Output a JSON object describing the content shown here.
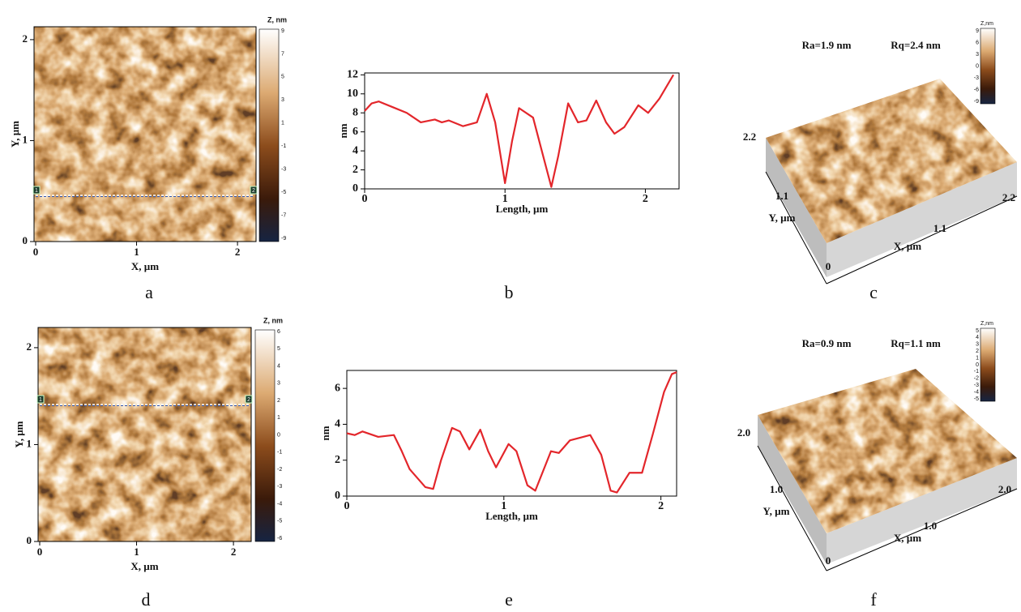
{
  "maps": [
    {
      "panel_label": "a",
      "x_axis_title": "X, µm",
      "y_axis_title": "Y, µm",
      "x_ticks": [
        "0",
        "1",
        "2"
      ],
      "y_ticks": [
        "0",
        "1",
        "2"
      ],
      "colorbar_title": "Z, nm",
      "colorbar_ticks": [
        "9",
        "7",
        "5",
        "3",
        "1",
        "-1",
        "-3",
        "-5",
        "-7",
        "-9"
      ],
      "marker_labels": [
        "1",
        "2"
      ]
    },
    {
      "panel_label": "d",
      "x_axis_title": "X, µm",
      "y_axis_title": "Y, µm",
      "x_ticks": [
        "0",
        "1",
        "2"
      ],
      "y_ticks": [
        "0",
        "1",
        "2"
      ],
      "colorbar_title": "Z, nm",
      "colorbar_ticks": [
        "6",
        "5",
        "4",
        "3",
        "2",
        "1",
        "0",
        "-1",
        "-2",
        "-3",
        "-4",
        "-5",
        "-6"
      ],
      "marker_labels": [
        "1",
        "2"
      ]
    }
  ],
  "chart_data": [
    {
      "type": "line",
      "panel_label": "b",
      "x_label": "Length, µm",
      "y_label": "nm",
      "x": [
        0,
        0.05,
        0.1,
        0.2,
        0.3,
        0.4,
        0.5,
        0.55,
        0.6,
        0.7,
        0.8,
        0.87,
        0.93,
        1.0,
        1.05,
        1.1,
        1.2,
        1.28,
        1.33,
        1.38,
        1.45,
        1.52,
        1.58,
        1.65,
        1.72,
        1.78,
        1.85,
        1.95,
        2.02,
        2.1,
        2.2
      ],
      "series": [
        {
          "color": "#e3262b",
          "values": [
            8.2,
            9.0,
            9.2,
            8.6,
            8.0,
            7.0,
            7.3,
            7.0,
            7.2,
            6.6,
            7.0,
            10.0,
            7.0,
            0.6,
            5.0,
            8.5,
            7.5,
            3.0,
            0.2,
            3.5,
            9.0,
            7.0,
            7.2,
            9.3,
            7.0,
            5.8,
            6.5,
            8.8,
            8.0,
            9.5,
            12.0
          ]
        }
      ],
      "xlim": [
        0,
        2.24
      ],
      "ylim": [
        0,
        12.2
      ],
      "xticks": [
        0,
        1,
        2
      ],
      "yticks": [
        0,
        2,
        4,
        6,
        8,
        10,
        12
      ]
    },
    {
      "type": "line",
      "panel_label": "e",
      "x_label": "Length, µm",
      "y_label": "nm",
      "x": [
        0,
        0.05,
        0.1,
        0.2,
        0.3,
        0.35,
        0.4,
        0.5,
        0.55,
        0.6,
        0.67,
        0.72,
        0.78,
        0.85,
        0.9,
        0.95,
        1.03,
        1.08,
        1.15,
        1.2,
        1.3,
        1.35,
        1.42,
        1.55,
        1.62,
        1.68,
        1.72,
        1.8,
        1.88,
        1.95,
        2.02,
        2.07,
        2.1
      ],
      "series": [
        {
          "color": "#e3262b",
          "values": [
            3.5,
            3.4,
            3.6,
            3.3,
            3.4,
            2.5,
            1.5,
            0.5,
            0.4,
            2.0,
            3.8,
            3.6,
            2.6,
            3.7,
            2.5,
            1.6,
            2.9,
            2.5,
            0.6,
            0.3,
            2.5,
            2.4,
            3.1,
            3.4,
            2.3,
            0.3,
            0.2,
            1.3,
            1.3,
            3.5,
            5.8,
            6.8,
            6.9
          ]
        }
      ],
      "xlim": [
        0,
        2.1
      ],
      "ylim": [
        0,
        7
      ],
      "xticks": [
        0,
        1,
        2
      ],
      "yticks": [
        0,
        2,
        4,
        6
      ]
    }
  ],
  "surfaces": [
    {
      "panel_label": "c",
      "ra": "Ra=1.9 nm",
      "rq": "Rq=2.4 nm",
      "y_ticks": [
        "2.2",
        "1.1",
        "0"
      ],
      "x_ticks": [
        "1.1",
        "2.2"
      ],
      "x_axis_title": "X, µm",
      "y_axis_title": "Y, µm",
      "colorbar_title": "Z,nm",
      "colorbar_ticks": [
        "9",
        "6",
        "3",
        "0",
        "-3",
        "-6",
        "-9"
      ]
    },
    {
      "panel_label": "f",
      "ra": "Ra=0.9 nm",
      "rq": "Rq=1.1 nm",
      "y_ticks": [
        "2.0",
        "1.0",
        "0"
      ],
      "x_ticks": [
        "1.0",
        "2.0"
      ],
      "x_axis_title": "X, µm",
      "y_axis_title": "Y, µm",
      "colorbar_title": "Z,nm",
      "colorbar_ticks": [
        "5",
        "4",
        "3",
        "2",
        "1",
        "0",
        "-1",
        "-2",
        "-3",
        "-4",
        "-5"
      ]
    }
  ]
}
